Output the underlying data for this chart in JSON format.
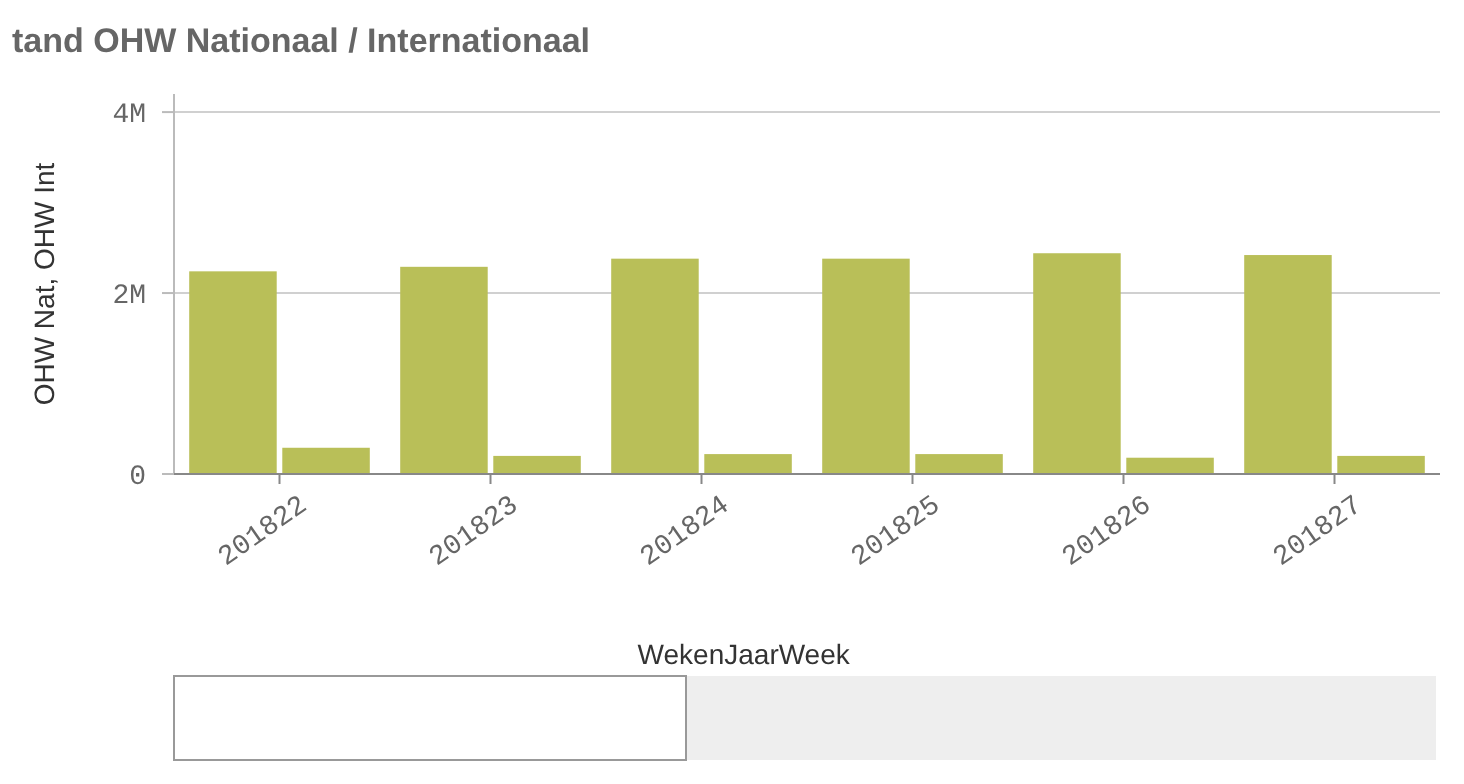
{
  "chart_data": {
    "type": "bar",
    "title": "tand OHW Nationaal / Internationaal",
    "xlabel": "WekenJaarWeek",
    "ylabel": "OHW Nat, OHW Int",
    "categories": [
      "201822",
      "201823",
      "201824",
      "201825",
      "201826",
      "201827"
    ],
    "series": [
      {
        "color": "#b9bf58",
        "values": [
          2240000,
          2290000,
          2380000,
          2380000,
          2440000,
          2420000
        ]
      },
      {
        "color": "#b9bf58",
        "values": [
          290000,
          200000,
          220000,
          220000,
          180000,
          200000
        ]
      }
    ],
    "ylim": [
      0,
      4200000
    ],
    "yticks": [
      0,
      {
        "value": 2000000,
        "label": "2M"
      },
      {
        "value": 4000000,
        "label": "4M"
      }
    ],
    "grid": "y"
  }
}
